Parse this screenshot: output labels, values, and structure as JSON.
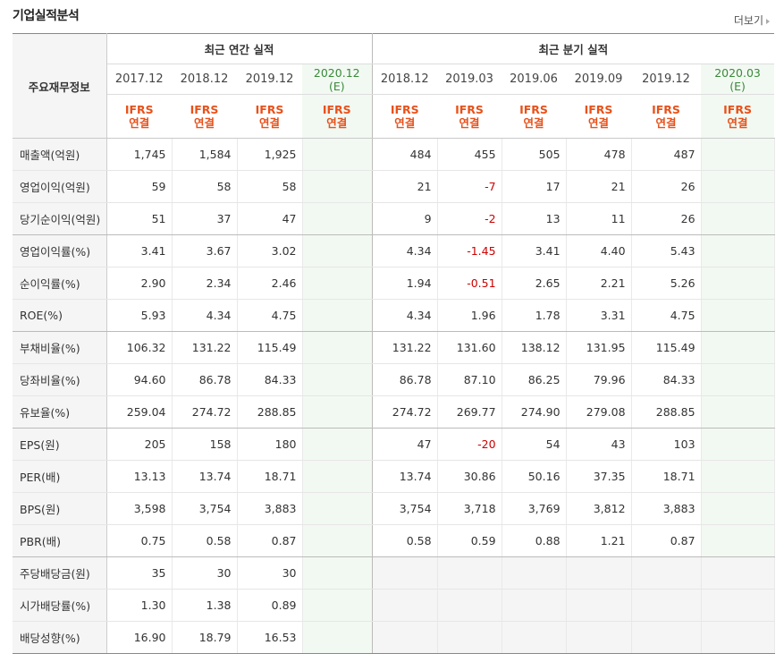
{
  "title": "기업실적분석",
  "more": "더보기",
  "header": {
    "label": "주요재무정보",
    "annual_group": "최근 연간 실적",
    "quarter_group": "최근 분기 실적",
    "annual_periods": [
      "2017.12",
      "2018.12",
      "2019.12",
      "2020.12"
    ],
    "annual_est_mark": "(E)",
    "quarter_periods": [
      "2018.12",
      "2019.03",
      "2019.06",
      "2019.09",
      "2019.12",
      "2020.03"
    ],
    "quarter_est_mark": "(E)",
    "ifrs_line1": "IFRS",
    "ifrs_line2": "연결"
  },
  "rows": [
    {
      "label": "매출액(억원)",
      "annual": [
        "1,745",
        "1,584",
        "1,925",
        ""
      ],
      "quarter": [
        "484",
        "455",
        "505",
        "478",
        "487",
        ""
      ]
    },
    {
      "label": "영업이익(억원)",
      "annual": [
        "59",
        "58",
        "58",
        ""
      ],
      "quarter": [
        "21",
        "-7",
        "17",
        "21",
        "26",
        ""
      ]
    },
    {
      "label": "당기순이익(억원)",
      "annual": [
        "51",
        "37",
        "47",
        ""
      ],
      "quarter": [
        "9",
        "-2",
        "13",
        "11",
        "26",
        ""
      ]
    },
    {
      "label": "영업이익률(%)",
      "annual": [
        "3.41",
        "3.67",
        "3.02",
        ""
      ],
      "quarter": [
        "4.34",
        "-1.45",
        "3.41",
        "4.40",
        "5.43",
        ""
      ]
    },
    {
      "label": "순이익률(%)",
      "annual": [
        "2.90",
        "2.34",
        "2.46",
        ""
      ],
      "quarter": [
        "1.94",
        "-0.51",
        "2.65",
        "2.21",
        "5.26",
        ""
      ]
    },
    {
      "label": "ROE(%)",
      "annual": [
        "5.93",
        "4.34",
        "4.75",
        ""
      ],
      "quarter": [
        "4.34",
        "1.96",
        "1.78",
        "3.31",
        "4.75",
        ""
      ]
    },
    {
      "label": "부채비율(%)",
      "annual": [
        "106.32",
        "131.22",
        "115.49",
        ""
      ],
      "quarter": [
        "131.22",
        "131.60",
        "138.12",
        "131.95",
        "115.49",
        ""
      ]
    },
    {
      "label": "당좌비율(%)",
      "annual": [
        "94.60",
        "86.78",
        "84.33",
        ""
      ],
      "quarter": [
        "86.78",
        "87.10",
        "86.25",
        "79.96",
        "84.33",
        ""
      ]
    },
    {
      "label": "유보율(%)",
      "annual": [
        "259.04",
        "274.72",
        "288.85",
        ""
      ],
      "quarter": [
        "274.72",
        "269.77",
        "274.90",
        "279.08",
        "288.85",
        ""
      ]
    },
    {
      "label": "EPS(원)",
      "annual": [
        "205",
        "158",
        "180",
        ""
      ],
      "quarter": [
        "47",
        "-20",
        "54",
        "43",
        "103",
        ""
      ]
    },
    {
      "label": "PER(배)",
      "annual": [
        "13.13",
        "13.74",
        "18.71",
        ""
      ],
      "quarter": [
        "13.74",
        "30.86",
        "50.16",
        "37.35",
        "18.71",
        ""
      ]
    },
    {
      "label": "BPS(원)",
      "annual": [
        "3,598",
        "3,754",
        "3,883",
        ""
      ],
      "quarter": [
        "3,754",
        "3,718",
        "3,769",
        "3,812",
        "3,883",
        ""
      ]
    },
    {
      "label": "PBR(배)",
      "annual": [
        "0.75",
        "0.58",
        "0.87",
        ""
      ],
      "quarter": [
        "0.58",
        "0.59",
        "0.88",
        "1.21",
        "0.87",
        ""
      ]
    },
    {
      "label": "주당배당금(원)",
      "annual": [
        "35",
        "30",
        "30",
        ""
      ],
      "quarter": [
        "",
        "",
        "",
        "",
        "",
        ""
      ]
    },
    {
      "label": "시가배당률(%)",
      "annual": [
        "1.30",
        "1.38",
        "0.89",
        ""
      ],
      "quarter": [
        "",
        "",
        "",
        "",
        "",
        ""
      ]
    },
    {
      "label": "배당성향(%)",
      "annual": [
        "16.90",
        "18.79",
        "16.53",
        ""
      ],
      "quarter": [
        "",
        "",
        "",
        "",
        "",
        ""
      ]
    }
  ],
  "colors": {
    "negative": "#cc0000",
    "ifrs": "#e8511a",
    "estimate": "#3a8a3a",
    "estimate_bg": "#f2f9f2"
  }
}
